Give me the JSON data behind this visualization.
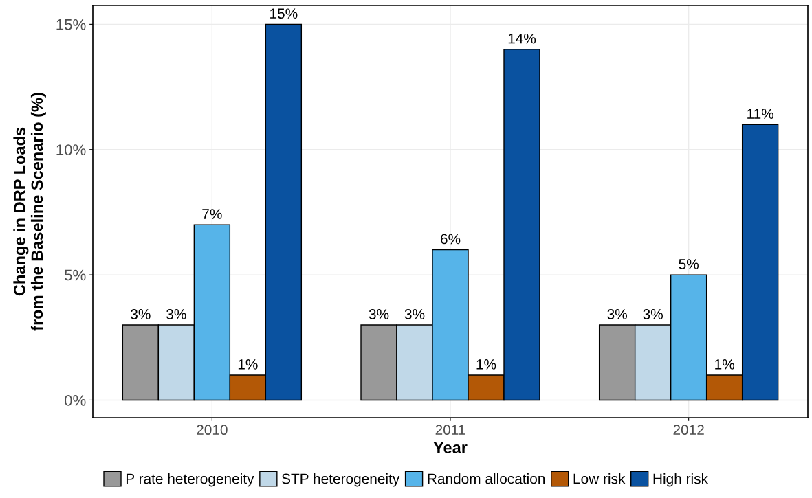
{
  "chart_data": {
    "type": "bar",
    "xlabel": "Year",
    "ylabel": "Change in DRP Loads\nfrom the Baseline Scenario (%)",
    "categories": [
      "2010",
      "2011",
      "2012"
    ],
    "series": [
      {
        "name": "P rate heterogeneity",
        "color": "#999999",
        "values": [
          3,
          3,
          3
        ],
        "value_labels": [
          "3%",
          "3%",
          "3%"
        ]
      },
      {
        "name": "STP heterogeneity",
        "color": "#c0d8e8",
        "values": [
          3,
          3,
          3
        ],
        "value_labels": [
          "3%",
          "3%",
          "3%"
        ]
      },
      {
        "name": "Random allocation",
        "color": "#56b4e9",
        "values": [
          7,
          6,
          5
        ],
        "value_labels": [
          "7%",
          "6%",
          "5%"
        ]
      },
      {
        "name": "Low risk",
        "color": "#b35806",
        "values": [
          1,
          1,
          1
        ],
        "value_labels": [
          "1%",
          "1%",
          "1%"
        ]
      },
      {
        "name": "High risk",
        "color": "#0a52a0",
        "values": [
          15,
          14,
          11
        ],
        "value_labels": [
          "15%",
          "14%",
          "11%"
        ]
      }
    ],
    "ylim": [
      -0.7,
      15.75
    ],
    "yticks": [
      {
        "value": 0,
        "label": "0%"
      },
      {
        "value": 5,
        "label": "5%"
      },
      {
        "value": 10,
        "label": "10%"
      },
      {
        "value": 15,
        "label": "15%"
      }
    ],
    "grid": true,
    "legend": "bottom"
  }
}
